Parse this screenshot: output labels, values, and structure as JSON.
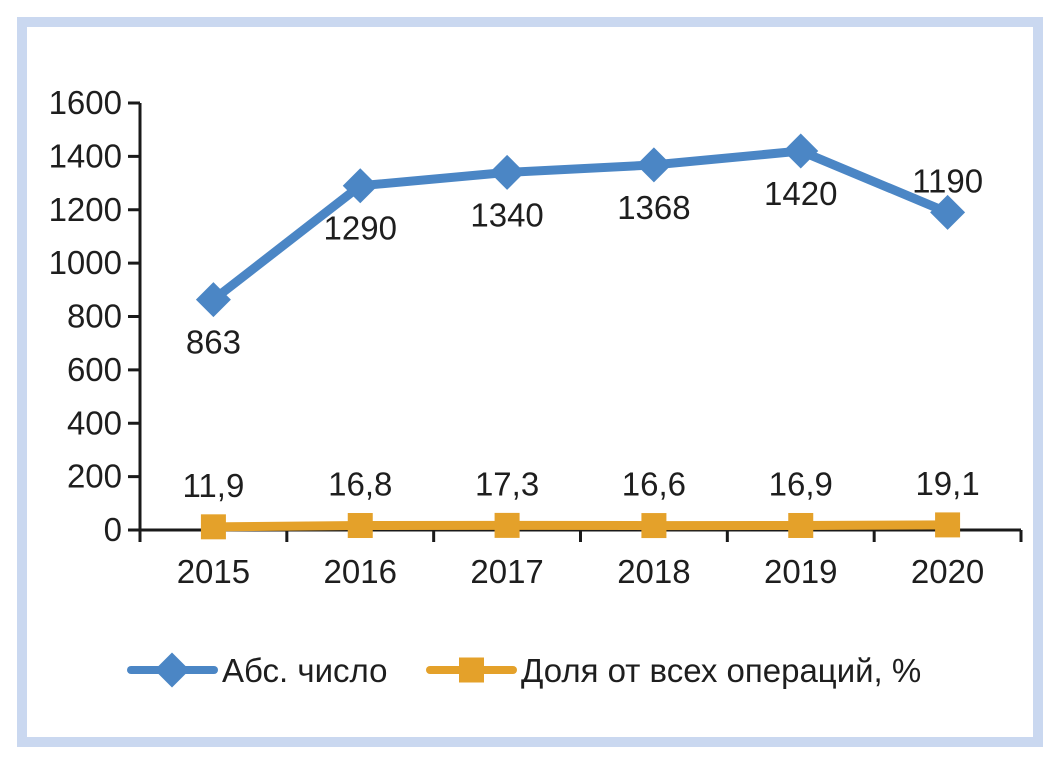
{
  "chart_data": {
    "type": "line",
    "title": "",
    "xlabel": "",
    "ylabel": "",
    "categories": [
      "2015",
      "2016",
      "2017",
      "2018",
      "2019",
      "2020"
    ],
    "series": [
      {
        "name": "Абс. число",
        "values": [
          863,
          1290,
          1340,
          1368,
          1420,
          1190
        ],
        "labels": [
          "863",
          "1290",
          "1340",
          "1368",
          "1420",
          "1190"
        ],
        "label_positions": [
          "below",
          "below",
          "below",
          "below",
          "below",
          "above"
        ],
        "color": "#4B86C5",
        "marker": "diamond"
      },
      {
        "name": "Доля от всех операций, %",
        "values": [
          11.9,
          16.8,
          17.3,
          16.6,
          16.9,
          19.1
        ],
        "labels": [
          "11,9",
          "16,8",
          "17,3",
          "16,6",
          "16,9",
          "19,1"
        ],
        "label_positions": [
          "above",
          "above",
          "above",
          "above",
          "above",
          "above"
        ],
        "color": "#E4A12A",
        "marker": "square"
      }
    ],
    "ylim": [
      0,
      1600
    ],
    "ytick_step": 200,
    "y_tick_labels": [
      "0",
      "200",
      "400",
      "600",
      "800",
      "1000",
      "1200",
      "1400",
      "1600"
    ],
    "grid": false,
    "legend_position": "bottom",
    "axis_color": "#1A1A1A",
    "text_color": "#1E1E1E",
    "frame_color": "#CAD8F0"
  }
}
